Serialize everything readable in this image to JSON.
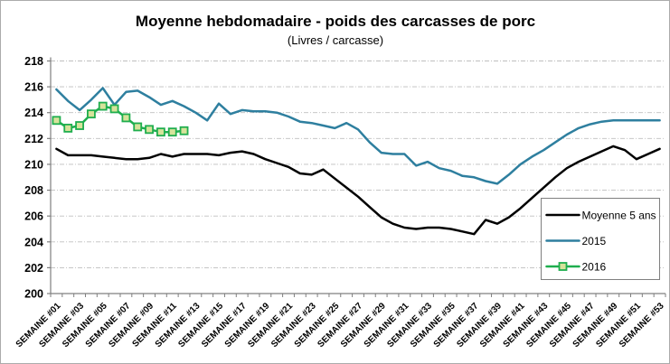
{
  "chart_data": {
    "type": "line",
    "title": "Moyenne hebdomadaire - poids des carcasses de porc",
    "subtitle": "(Livres / carcasse)",
    "ylim": [
      200,
      218
    ],
    "y_tick_step": 2,
    "grid": true,
    "x_categories_count": 53,
    "x_label_rotation": -45,
    "x_tick_labels": [
      "SEMAINE #01",
      "SEMAINE #03",
      "SEMAINE #05",
      "SEMAINE #07",
      "SEMAINE #09",
      "SEMAINE #11",
      "SEMAINE #13",
      "SEMAINE #15",
      "SEMAINE #17",
      "SEMAINE #19",
      "SEMAINE #21",
      "SEMAINE #23",
      "SEMAINE #25",
      "SEMAINE #27",
      "SEMAINE #29",
      "SEMAINE #31",
      "SEMAINE #33",
      "SEMAINE #35",
      "SEMAINE #37",
      "SEMAINE #39",
      "SEMAINE #41",
      "SEMAINE #43",
      "SEMAINE #45",
      "SEMAINE #47",
      "SEMAINE #49",
      "SEMAINE #51",
      "SEMAINE #53"
    ],
    "legend_position": "inside-right",
    "series": [
      {
        "name": "Moyenne 5 ans",
        "color": "#000000",
        "marker": "none",
        "values": [
          211.2,
          210.7,
          210.7,
          210.7,
          210.6,
          210.5,
          210.4,
          210.4,
          210.5,
          210.8,
          210.6,
          210.8,
          210.8,
          210.8,
          210.7,
          210.9,
          211.0,
          210.8,
          210.4,
          210.1,
          209.8,
          209.3,
          209.2,
          209.6,
          208.9,
          208.2,
          207.5,
          206.7,
          205.9,
          205.4,
          205.1,
          205.0,
          205.1,
          205.1,
          205.0,
          204.8,
          204.6,
          205.7,
          205.4,
          205.9,
          206.6,
          207.4,
          208.2,
          209.0,
          209.7,
          210.2,
          210.6,
          211.0,
          211.4,
          211.1,
          210.4,
          210.8,
          211.2
        ]
      },
      {
        "name": "2015",
        "color": "#2E7F9F",
        "marker": "none",
        "values": [
          215.8,
          214.9,
          214.2,
          215.0,
          215.9,
          214.6,
          215.6,
          215.7,
          215.2,
          214.6,
          214.9,
          214.5,
          214.0,
          213.4,
          214.7,
          213.9,
          214.2,
          214.1,
          214.1,
          214.0,
          213.7,
          213.3,
          213.2,
          213.0,
          212.8,
          213.2,
          212.7,
          211.7,
          210.9,
          210.8,
          210.8,
          209.9,
          210.2,
          209.7,
          209.5,
          209.1,
          209.0,
          208.7,
          208.5,
          209.2,
          210.0,
          210.6,
          211.1,
          211.7,
          212.3,
          212.8,
          213.1,
          213.3,
          213.4,
          213.4,
          213.4,
          213.4,
          213.4
        ]
      },
      {
        "name": "2016",
        "color": "#1FAE4E",
        "marker": "square",
        "marker_fill": "#D6E39B",
        "values": [
          213.4,
          212.8,
          213.0,
          213.9,
          214.5,
          214.3,
          213.6,
          212.9,
          212.7,
          212.5,
          212.5,
          212.6
        ]
      }
    ],
    "colors": {
      "gridline": "#BFBFBF",
      "axis": "#7F7F7F",
      "legend_border": "#7F7F7F",
      "background": "#FFFFFF"
    }
  }
}
